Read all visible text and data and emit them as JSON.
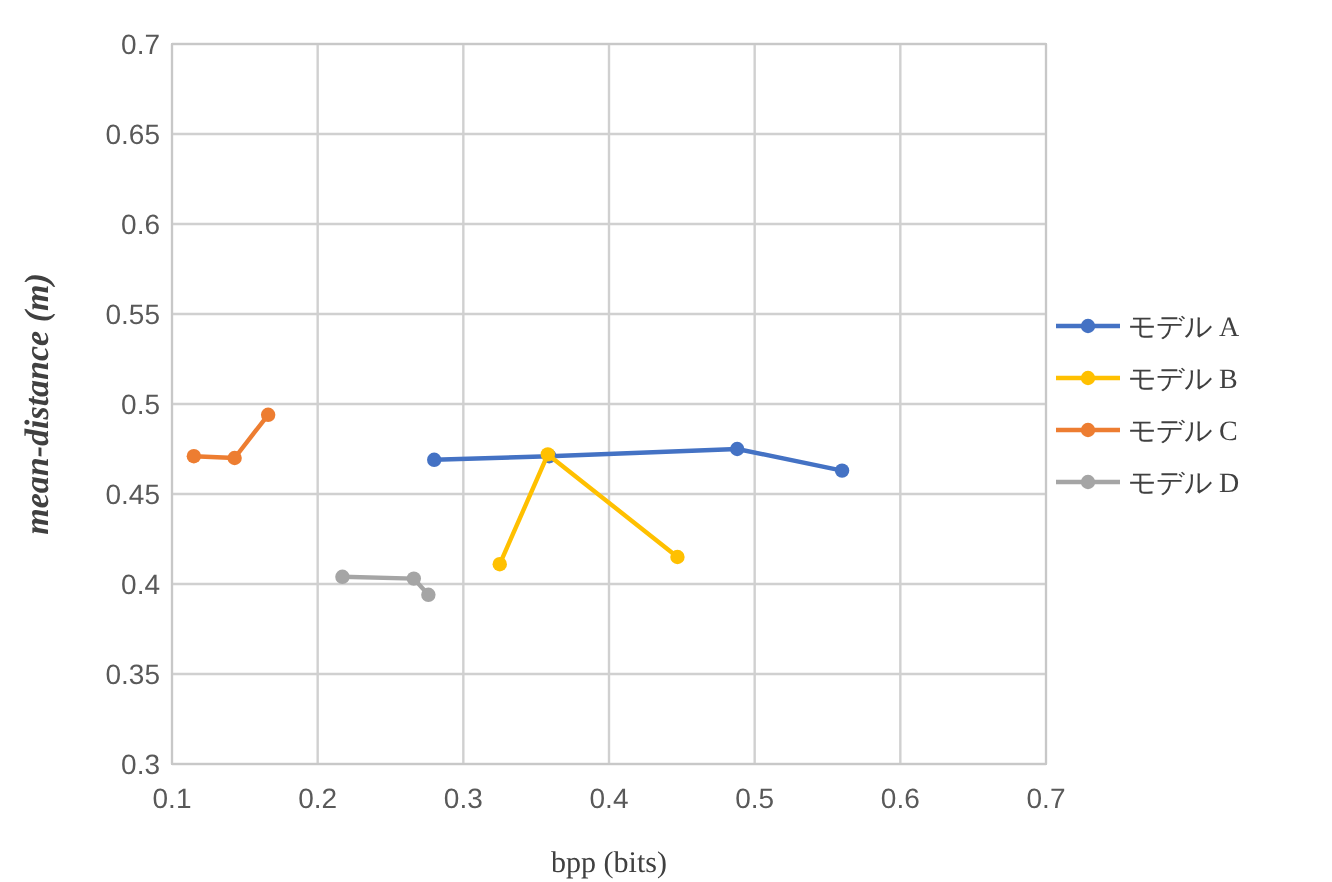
{
  "chart_data": {
    "type": "line",
    "xlabel": "bpp (bits)",
    "ylabel": "mean-distance (m)",
    "xlim": [
      0.1,
      0.7
    ],
    "xticks": [
      0.1,
      0.2,
      0.3,
      0.4,
      0.5,
      0.6,
      0.7
    ],
    "ylim": [
      0.3,
      0.7
    ],
    "yticks": [
      0.3,
      0.35,
      0.4,
      0.45,
      0.5,
      0.55,
      0.6,
      0.65,
      0.7
    ],
    "grid": true,
    "legend": "right",
    "marker": "circle",
    "line_style": "solid",
    "series": [
      {
        "name": "モデル A",
        "color": "#4472c4",
        "x": [
          0.28,
          0.359,
          0.488,
          0.56
        ],
        "values": [
          0.469,
          0.471,
          0.475,
          0.463
        ]
      },
      {
        "name": "モデル B",
        "color": "#ffc000",
        "x": [
          0.325,
          0.358,
          0.447
        ],
        "values": [
          0.411,
          0.472,
          0.415
        ]
      },
      {
        "name": "モデル C",
        "color": "#ed7d31",
        "x": [
          0.115,
          0.143,
          0.166
        ],
        "values": [
          0.471,
          0.47,
          0.494
        ]
      },
      {
        "name": "モデル D",
        "color": "#a5a5a5",
        "x": [
          0.217,
          0.266,
          0.276
        ],
        "values": [
          0.404,
          0.403,
          0.394
        ]
      }
    ]
  }
}
